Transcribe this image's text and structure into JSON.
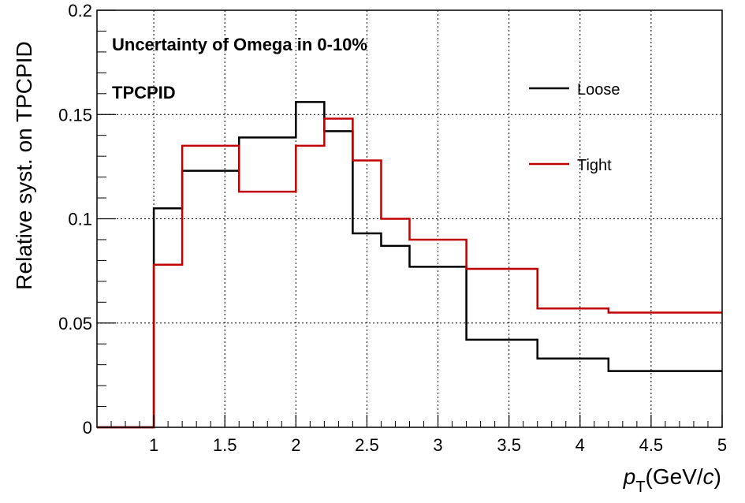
{
  "chart_data": {
    "type": "line",
    "step": true,
    "title": "",
    "ylabel": "Relative syst. on TPCPID",
    "xlabel_main": "p",
    "xlabel_sub": "T",
    "xlabel_unit_pre": "(GeV/",
    "xlabel_unit_italic": "c",
    "xlabel_unit_post": ")",
    "xlim": [
      0.6,
      5.0
    ],
    "ylim": [
      0,
      0.2
    ],
    "xticks": [
      1,
      1.5,
      2,
      2.5,
      3,
      3.5,
      4,
      4.5,
      5
    ],
    "xtick_labels": [
      "1",
      "1.5",
      "2",
      "2.5",
      "3",
      "3.5",
      "4",
      "4.5",
      "5"
    ],
    "yticks": [
      0,
      0.05,
      0.1,
      0.15,
      0.2
    ],
    "ytick_labels": [
      "0",
      "0.05",
      "0.1",
      "0.15",
      "0.2"
    ],
    "grid": true,
    "legend_position": "top-right",
    "annotations": [
      "Uncertainty of Omega in 0-10%",
      "TPCPID"
    ],
    "bin_edges": [
      0.6,
      1.0,
      1.2,
      1.6,
      2.0,
      2.2,
      2.4,
      2.6,
      2.8,
      3.2,
      3.7,
      4.2,
      5.0
    ],
    "series": [
      {
        "name": "Loose",
        "color": "#000000",
        "values": [
          0.0,
          0.105,
          0.123,
          0.139,
          0.156,
          0.142,
          0.093,
          0.087,
          0.077,
          0.042,
          0.033,
          0.027
        ]
      },
      {
        "name": "Tight",
        "color": "#c00000",
        "values": [
          0.0,
          0.078,
          0.135,
          0.113,
          0.135,
          0.148,
          0.128,
          0.1,
          0.09,
          0.076,
          0.057,
          0.055
        ]
      }
    ]
  }
}
